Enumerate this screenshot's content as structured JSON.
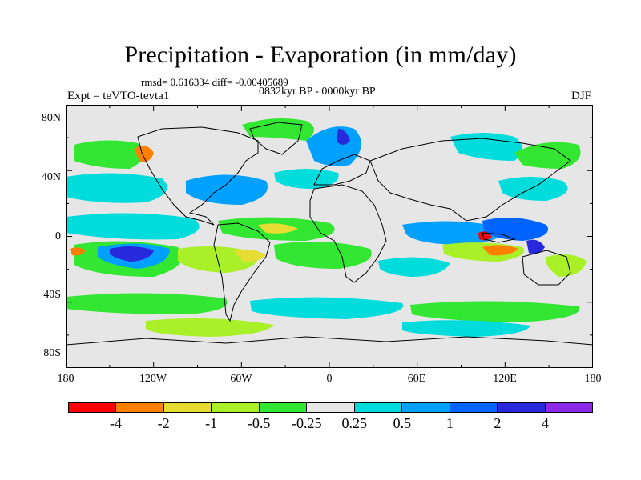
{
  "title": "Precipitation - Evaporation (in mm/day)",
  "stats": "rmsd= 0.616334 diff= -0.00405689",
  "period": "0832kyr BP - 0000kyr BP",
  "experiment": "Expt = teVTO-tevta1",
  "season": "DJF",
  "lat_labels": [
    "80N",
    "40N",
    "0",
    "40S",
    "80S"
  ],
  "lon_labels": [
    "180",
    "120W",
    "60W",
    "0",
    "60E",
    "120E",
    "180"
  ],
  "colorbar": {
    "colors": [
      "#ff0000",
      "#ff8000",
      "#e6dc32",
      "#aaf028",
      "#32e632",
      "#e6e6e6",
      "#00dcdc",
      "#00a0ff",
      "#0064ff",
      "#2828dc",
      "#8c28e6"
    ],
    "labels": [
      "-4",
      "-2",
      "-1",
      "-0.5",
      "-0.25",
      "0.25",
      "0.5",
      "1",
      "2",
      "4"
    ]
  },
  "map": {
    "ocean_background": "#e6e6e6",
    "coastline_color": "#000000"
  }
}
